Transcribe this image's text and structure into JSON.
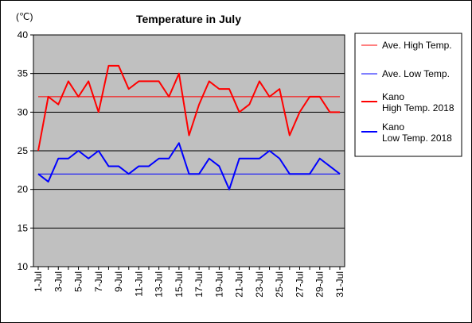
{
  "chart_data": {
    "type": "line",
    "title": "Temperature in July",
    "unit_label": "(℃)",
    "ylim": [
      10,
      40
    ],
    "yticks": [
      10,
      15,
      20,
      25,
      30,
      35,
      40
    ],
    "grid": true,
    "legend_position": "right",
    "x_tick_labels": [
      "1-Jul",
      "3-Jul",
      "5-Jul",
      "7-Jul",
      "9-Jul",
      "11-Jul",
      "13-Jul",
      "15-Jul",
      "17-Jul",
      "19-Jul",
      "21-Jul",
      "23-Jul",
      "25-Jul",
      "27-Jul",
      "29-Jul",
      "31-Jul"
    ],
    "x": [
      1,
      2,
      3,
      4,
      5,
      6,
      7,
      8,
      9,
      10,
      11,
      12,
      13,
      14,
      15,
      16,
      17,
      18,
      19,
      20,
      21,
      22,
      23,
      24,
      25,
      26,
      27,
      28,
      29,
      30,
      31
    ],
    "series": [
      {
        "name": "Ave. High Temp.",
        "color": "#ff0000",
        "style": "thin",
        "values": [
          32,
          32,
          32,
          32,
          32,
          32,
          32,
          32,
          32,
          32,
          32,
          32,
          32,
          32,
          32,
          32,
          32,
          32,
          32,
          32,
          32,
          32,
          32,
          32,
          32,
          32,
          32,
          32,
          32,
          32,
          32
        ]
      },
      {
        "name": "Ave. Low Temp.",
        "color": "#0000ff",
        "style": "thin",
        "values": [
          22,
          22,
          22,
          22,
          22,
          22,
          22,
          22,
          22,
          22,
          22,
          22,
          22,
          22,
          22,
          22,
          22,
          22,
          22,
          22,
          22,
          22,
          22,
          22,
          22,
          22,
          22,
          22,
          22,
          22,
          22
        ]
      },
      {
        "name": "Kano\nHigh Temp. 2018",
        "color": "#ff0000",
        "style": "thick",
        "values": [
          25,
          32,
          31,
          34,
          32,
          34,
          30,
          36,
          36,
          33,
          34,
          34,
          34,
          32,
          35,
          27,
          31,
          34,
          33,
          33,
          30,
          31,
          34,
          32,
          33,
          27,
          30,
          32,
          32,
          30,
          30
        ]
      },
      {
        "name": "Kano\nLow Temp. 2018",
        "color": "#0000ff",
        "style": "thick",
        "values": [
          22,
          21,
          24,
          24,
          25,
          24,
          25,
          23,
          23,
          22,
          23,
          23,
          24,
          24,
          26,
          22,
          22,
          24,
          23,
          20,
          24,
          24,
          24,
          25,
          24,
          22,
          22,
          22,
          24,
          23,
          22
        ]
      }
    ],
    "plot_background": "#c0c0c0"
  }
}
